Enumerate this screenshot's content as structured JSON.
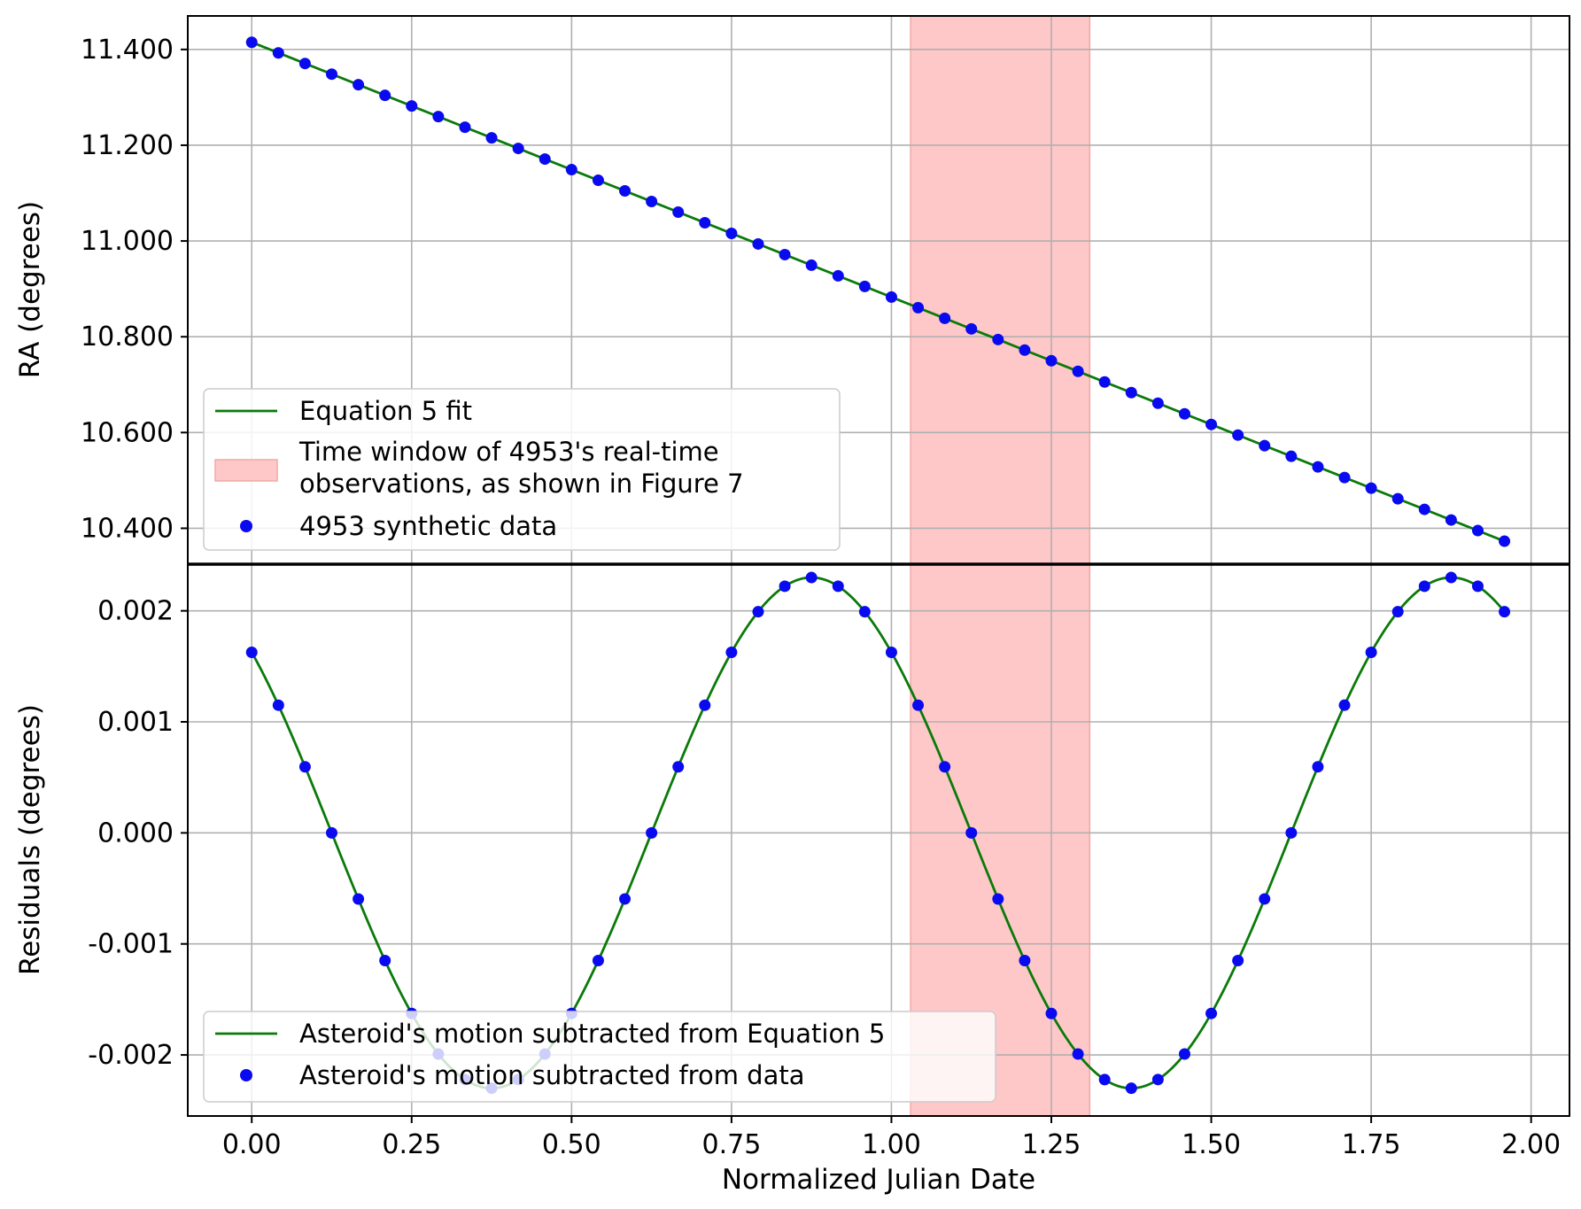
{
  "chart_data": [
    {
      "type": "line",
      "panel": "top",
      "ylabel": "RA (degrees)",
      "xlim": [
        -0.1,
        2.06
      ],
      "ylim": [
        10.325,
        11.47
      ],
      "yticks": [
        10.4,
        10.6,
        10.8,
        11.0,
        11.2,
        11.4
      ],
      "ytick_labels": [
        "10.400",
        "10.600",
        "10.800",
        "11.000",
        "11.200",
        "11.400"
      ],
      "xticks": [
        0.0,
        0.25,
        0.5,
        0.75,
        1.0,
        1.25,
        1.5,
        1.75,
        2.0
      ],
      "grid": true,
      "legend_position": "lower-left",
      "shaded_region": {
        "x": [
          1.03,
          1.31
        ],
        "label": "Time window of 4953's real-time\n observations, as shown in Figure 7",
        "color": "#ffc8c8"
      },
      "series": [
        {
          "name": "Equation 5 fit",
          "kind": "line",
          "color": "#0a7a0a",
          "x_start": 0.0,
          "x_end": 1.9583,
          "y_start": 11.415,
          "y_end": 10.373
        },
        {
          "name": "4953 synthetic data",
          "kind": "scatter",
          "color": "#0a0af0",
          "x_start": 0.0,
          "x_step": 0.041667,
          "count": 48,
          "y_start": 11.415,
          "y_step": -0.02217
        }
      ]
    },
    {
      "type": "line",
      "panel": "bottom",
      "xlabel": "Normalized Julian Date",
      "ylabel": "Residuals (degrees)",
      "xlim": [
        -0.1,
        2.06
      ],
      "ylim": [
        -0.00255,
        0.00242
      ],
      "yticks": [
        -0.002,
        -0.001,
        0.0,
        0.001,
        0.002
      ],
      "ytick_labels": [
        "-0.002",
        "-0.001",
        "0.000",
        "0.001",
        "0.002"
      ],
      "xticks": [
        0.0,
        0.25,
        0.5,
        0.75,
        1.0,
        1.25,
        1.5,
        1.75,
        2.0
      ],
      "xtick_labels": [
        "0.00",
        "0.25",
        "0.50",
        "0.75",
        "1.00",
        "1.25",
        "1.50",
        "1.75",
        "2.00"
      ],
      "grid": true,
      "legend_position": "lower-left",
      "shaded_region": {
        "x": [
          1.03,
          1.31
        ],
        "color": "#ffc8c8"
      },
      "series": [
        {
          "name": "Asteroid's motion subtracted from Equation 5",
          "kind": "line",
          "color": "#0a7a0a",
          "model": {
            "amplitude": 0.0023,
            "period": 1.0,
            "phase_x": 0.875
          }
        },
        {
          "name": "Asteroid's motion subtracted from data",
          "kind": "scatter",
          "color": "#0a0af0",
          "x_start": 0.0,
          "x_step": 0.041667,
          "count": 48
        }
      ]
    }
  ],
  "colors": {
    "fit_line": "#0a7a0a",
    "data_points": "#0a0af0",
    "shaded": "#ffc8c8"
  }
}
